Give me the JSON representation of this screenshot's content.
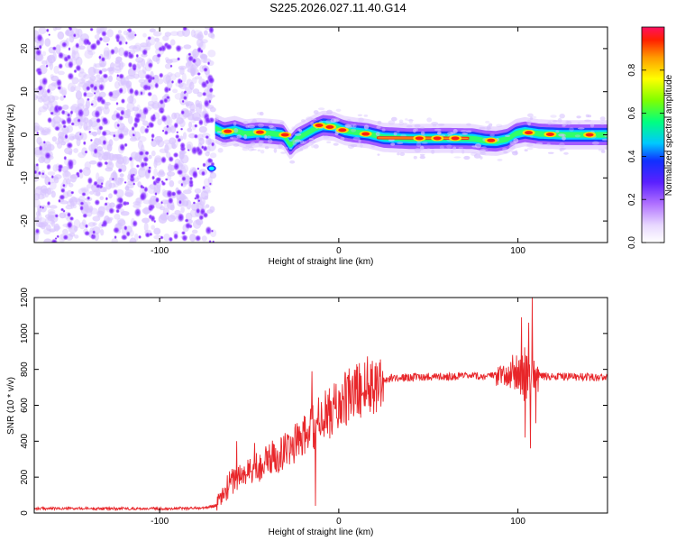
{
  "title": "S225.2026.027.11.40.G14",
  "spectrogram": {
    "type": "heatmap",
    "xlabel": "Height of straight line (km)",
    "ylabel": "Frequency (Hz)",
    "xlim": [
      -170,
      150
    ],
    "ylim": [
      -25,
      25
    ],
    "xticks": [
      -100,
      0,
      100
    ],
    "yticks": [
      -20,
      -10,
      0,
      10,
      20
    ],
    "xtick_labels": [
      "-100",
      "0",
      "100"
    ],
    "ytick_labels": [
      "-20",
      "-10",
      "0",
      "10",
      "20"
    ],
    "noise_region_x": [
      -170,
      -70
    ],
    "ridge": [
      [
        -69,
        1.5
      ],
      [
        -64,
        0.5
      ],
      [
        -58,
        1.0
      ],
      [
        -52,
        0.2
      ],
      [
        -45,
        0.5
      ],
      [
        -38,
        0.3
      ],
      [
        -31,
        0.0
      ],
      [
        -27,
        -2.5
      ],
      [
        -24,
        -1.0
      ],
      [
        -18,
        0.3
      ],
      [
        -13,
        1.5
      ],
      [
        -9,
        2.2
      ],
      [
        -3,
        2.0
      ],
      [
        3,
        1.0
      ],
      [
        9,
        0.6
      ],
      [
        16,
        0.3
      ],
      [
        25,
        -0.6
      ],
      [
        40,
        -0.9
      ],
      [
        60,
        -0.8
      ],
      [
        75,
        -0.9
      ],
      [
        82,
        -1.4
      ],
      [
        88,
        -1.5
      ],
      [
        94,
        -1.0
      ],
      [
        99,
        0.3
      ],
      [
        104,
        0.7
      ],
      [
        112,
        0.2
      ],
      [
        125,
        0.0
      ],
      [
        140,
        0.0
      ],
      [
        150,
        0.0
      ]
    ],
    "strong_spots": [
      [
        -62,
        0.8
      ],
      [
        -44,
        0.6
      ],
      [
        -30,
        0.0
      ],
      [
        -11,
        2.2
      ],
      [
        -5,
        1.8
      ],
      [
        2,
        1.1
      ],
      [
        15,
        0.2
      ],
      [
        45,
        -0.8
      ],
      [
        55,
        -0.8
      ],
      [
        65,
        -0.8
      ],
      [
        85,
        -1.3
      ],
      [
        106,
        0.5
      ],
      [
        118,
        0.1
      ],
      [
        140,
        0.0
      ]
    ],
    "colorbar": {
      "label": "Normalized spectral amplitude",
      "ticks": [
        0.0,
        0.2,
        0.4,
        0.6,
        0.8
      ],
      "tick_labels": [
        "0.0",
        "0.2",
        "0.4",
        "0.6",
        "0.8"
      ],
      "range": [
        0,
        1
      ],
      "colors": [
        "#ffffff",
        "#d8b8ff",
        "#8c3cff",
        "#2020ff",
        "#00ffff",
        "#00ff40",
        "#ffff00",
        "#ff9900",
        "#ff0000"
      ]
    }
  },
  "snr": {
    "type": "line",
    "xlabel": "Height of straight line (km)",
    "ylabel": "SNR (10 * v/v)",
    "xlim": [
      -170,
      150
    ],
    "ylim": [
      0,
      1200
    ],
    "xticks": [
      -100,
      0,
      100
    ],
    "yticks": [
      0,
      200,
      400,
      600,
      800,
      1000,
      1200
    ],
    "xtick_labels": [
      "-100",
      "0",
      "100"
    ],
    "ytick_labels": [
      "0",
      "200",
      "400",
      "600",
      "800",
      "1000",
      "1200"
    ],
    "line_color": "#e8262a",
    "series_envelope": [
      [
        -170,
        25
      ],
      [
        -100,
        25
      ],
      [
        -75,
        28
      ],
      [
        -68,
        45
      ],
      [
        -60,
        180
      ],
      [
        -50,
        230
      ],
      [
        -40,
        290
      ],
      [
        -30,
        350
      ],
      [
        -20,
        420
      ],
      [
        -10,
        520
      ],
      [
        0,
        600
      ],
      [
        10,
        680
      ],
      [
        20,
        730
      ],
      [
        30,
        752
      ],
      [
        50,
        760
      ],
      [
        80,
        762
      ],
      [
        100,
        765
      ],
      [
        150,
        755
      ]
    ],
    "spikes": [
      [
        -57,
        400
      ],
      [
        -47,
        390
      ],
      [
        -41,
        340
      ],
      [
        -28,
        420
      ],
      [
        -19,
        330
      ],
      [
        -15,
        790
      ],
      [
        -13,
        40
      ],
      [
        97,
        880
      ],
      [
        102,
        1090
      ],
      [
        104,
        420
      ],
      [
        106,
        1060
      ],
      [
        107,
        360
      ],
      [
        108,
        1200
      ],
      [
        110,
        500
      ]
    ]
  }
}
